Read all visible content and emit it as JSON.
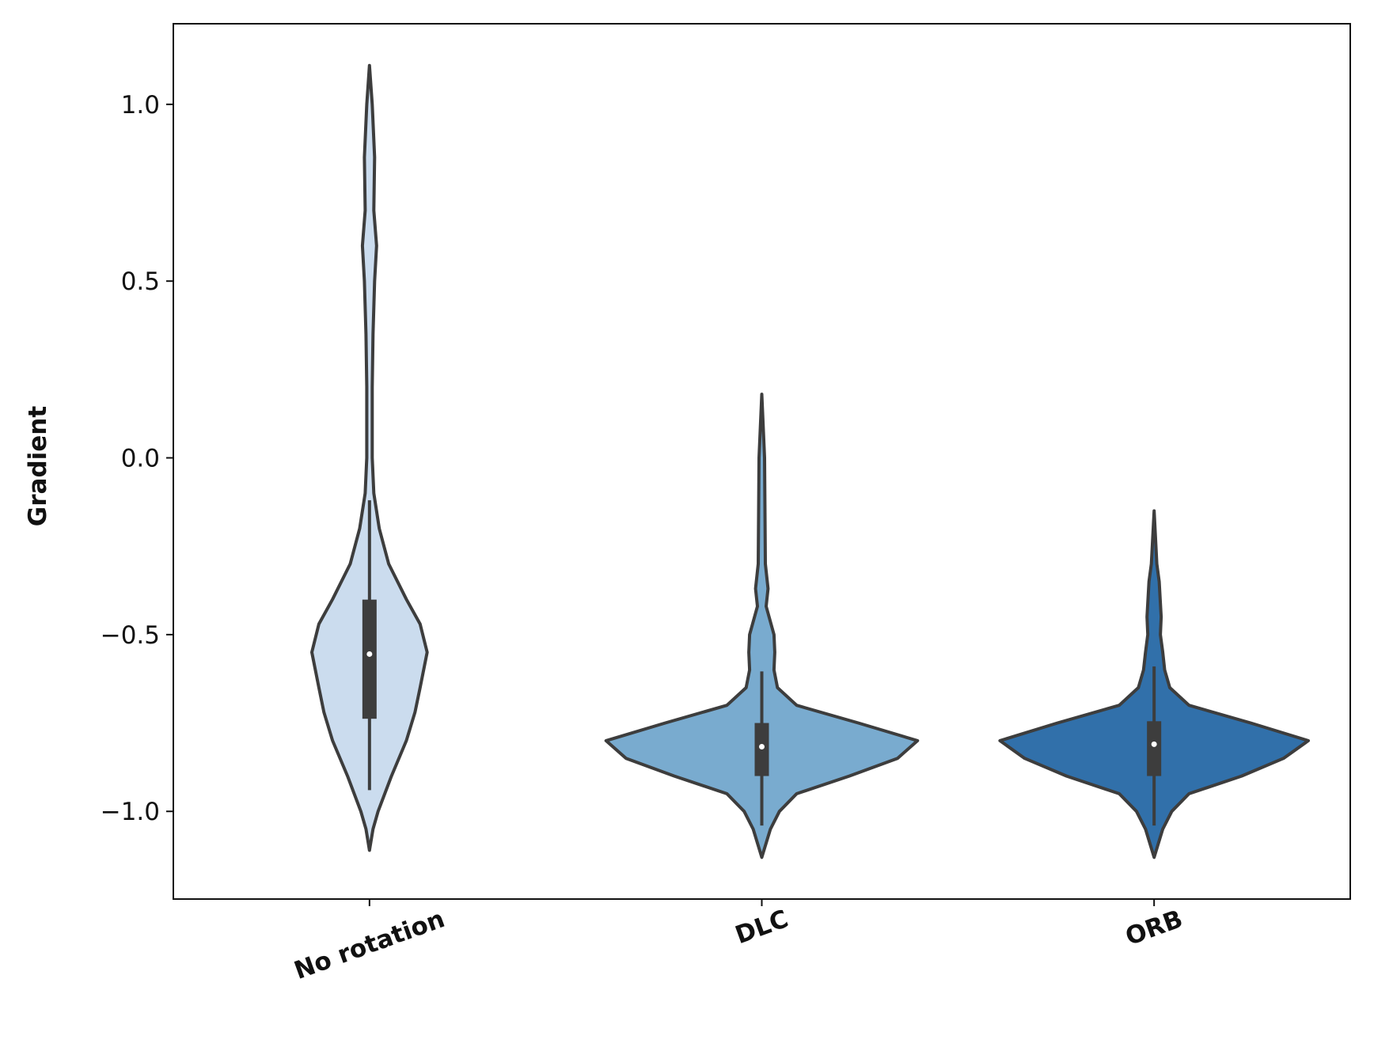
{
  "chart_data": {
    "type": "violin",
    "y_label": "Gradient",
    "categories": [
      "No rotation",
      "DLC",
      "ORB"
    ],
    "xlim": [
      -0.5,
      2.5
    ],
    "ylim": [
      -1.248,
      1.228
    ],
    "yticks": [
      {
        "value": -1.0,
        "label": "−1.0"
      },
      {
        "value": -0.5,
        "label": "−0.5"
      },
      {
        "value": 0.0,
        "label": "0.0"
      },
      0.5,
      {
        "value": 1.0,
        "label": "1.0"
      }
    ],
    "outline_color": "#3d3d3d",
    "violins": [
      {
        "color": "#cbdcee",
        "violin_y": [
          1.11,
          1.0,
          0.85,
          0.7,
          0.6,
          0.5,
          0.35,
          0.2,
          0.0,
          -0.1,
          -0.2,
          -0.3,
          -0.4,
          -0.47,
          -0.55,
          -0.65,
          -0.72,
          -0.8,
          -0.9,
          -1.0,
          -1.05,
          -1.11
        ],
        "violin_width": [
          0,
          0.007,
          0.013,
          0.011,
          0.018,
          0.013,
          0.009,
          0.007,
          0.007,
          0.011,
          0.025,
          0.049,
          0.094,
          0.129,
          0.147,
          0.129,
          0.116,
          0.094,
          0.056,
          0.022,
          0.009,
          0
        ],
        "whisker_low": -0.94,
        "q1": -0.738,
        "median": -0.555,
        "q3": -0.401,
        "whisker_high": -0.12
      },
      {
        "color": "#79abcf",
        "violin_y": [
          0.18,
          0.0,
          -0.3,
          -0.37,
          -0.42,
          -0.5,
          -0.55,
          -0.6,
          -0.65,
          -0.7,
          -0.75,
          -0.8,
          -0.85,
          -0.9,
          -0.95,
          -1.0,
          -1.05,
          -1.13
        ],
        "violin_width": [
          0,
          0.007,
          0.009,
          0.016,
          0.011,
          0.031,
          0.033,
          0.031,
          0.04,
          0.089,
          0.246,
          0.397,
          0.346,
          0.223,
          0.089,
          0.045,
          0.022,
          0
        ],
        "whisker_low": -1.04,
        "q1": -0.9,
        "median": -0.817,
        "q3": -0.75,
        "whisker_high": -0.604
      },
      {
        "color": "#3170aa",
        "violin_y": [
          -0.15,
          -0.3,
          -0.35,
          -0.45,
          -0.5,
          -0.55,
          -0.6,
          -0.65,
          -0.7,
          -0.75,
          -0.8,
          -0.85,
          -0.9,
          -0.95,
          -1.0,
          -1.05,
          -1.13
        ],
        "violin_width": [
          0,
          0.007,
          0.013,
          0.018,
          0.016,
          0.022,
          0.027,
          0.04,
          0.089,
          0.246,
          0.393,
          0.33,
          0.223,
          0.089,
          0.045,
          0.022,
          0
        ],
        "whisker_low": -1.04,
        "q1": -0.9,
        "median": -0.81,
        "q3": -0.745,
        "whisker_high": -0.59
      }
    ]
  }
}
